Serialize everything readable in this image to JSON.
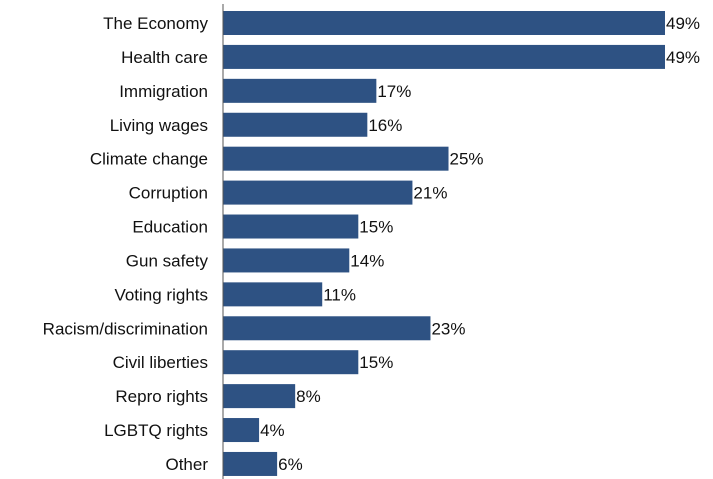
{
  "chart_data": {
    "type": "bar",
    "orientation": "horizontal",
    "categories": [
      "The Economy",
      "Health care",
      "Immigration",
      "Living wages",
      "Climate change",
      "Corruption",
      "Education",
      "Gun safety",
      "Voting rights",
      "Racism/discrimination",
      "Civil liberties",
      "Repro rights",
      "LGBTQ rights",
      "Other"
    ],
    "values": [
      49,
      49,
      17,
      16,
      25,
      21,
      15,
      14,
      11,
      23,
      15,
      8,
      4,
      6
    ],
    "value_labels": [
      "49%",
      "49%",
      "17%",
      "16%",
      "25%",
      "21%",
      "15%",
      "14%",
      "11%",
      "23%",
      "15%",
      "8%",
      "4%",
      "6%"
    ],
    "title": "",
    "xlabel": "",
    "ylabel": "",
    "xlim": [
      0,
      49
    ],
    "grid": false,
    "legend": "none",
    "bar_color": "#2e5283",
    "axis_color": "#555555"
  }
}
